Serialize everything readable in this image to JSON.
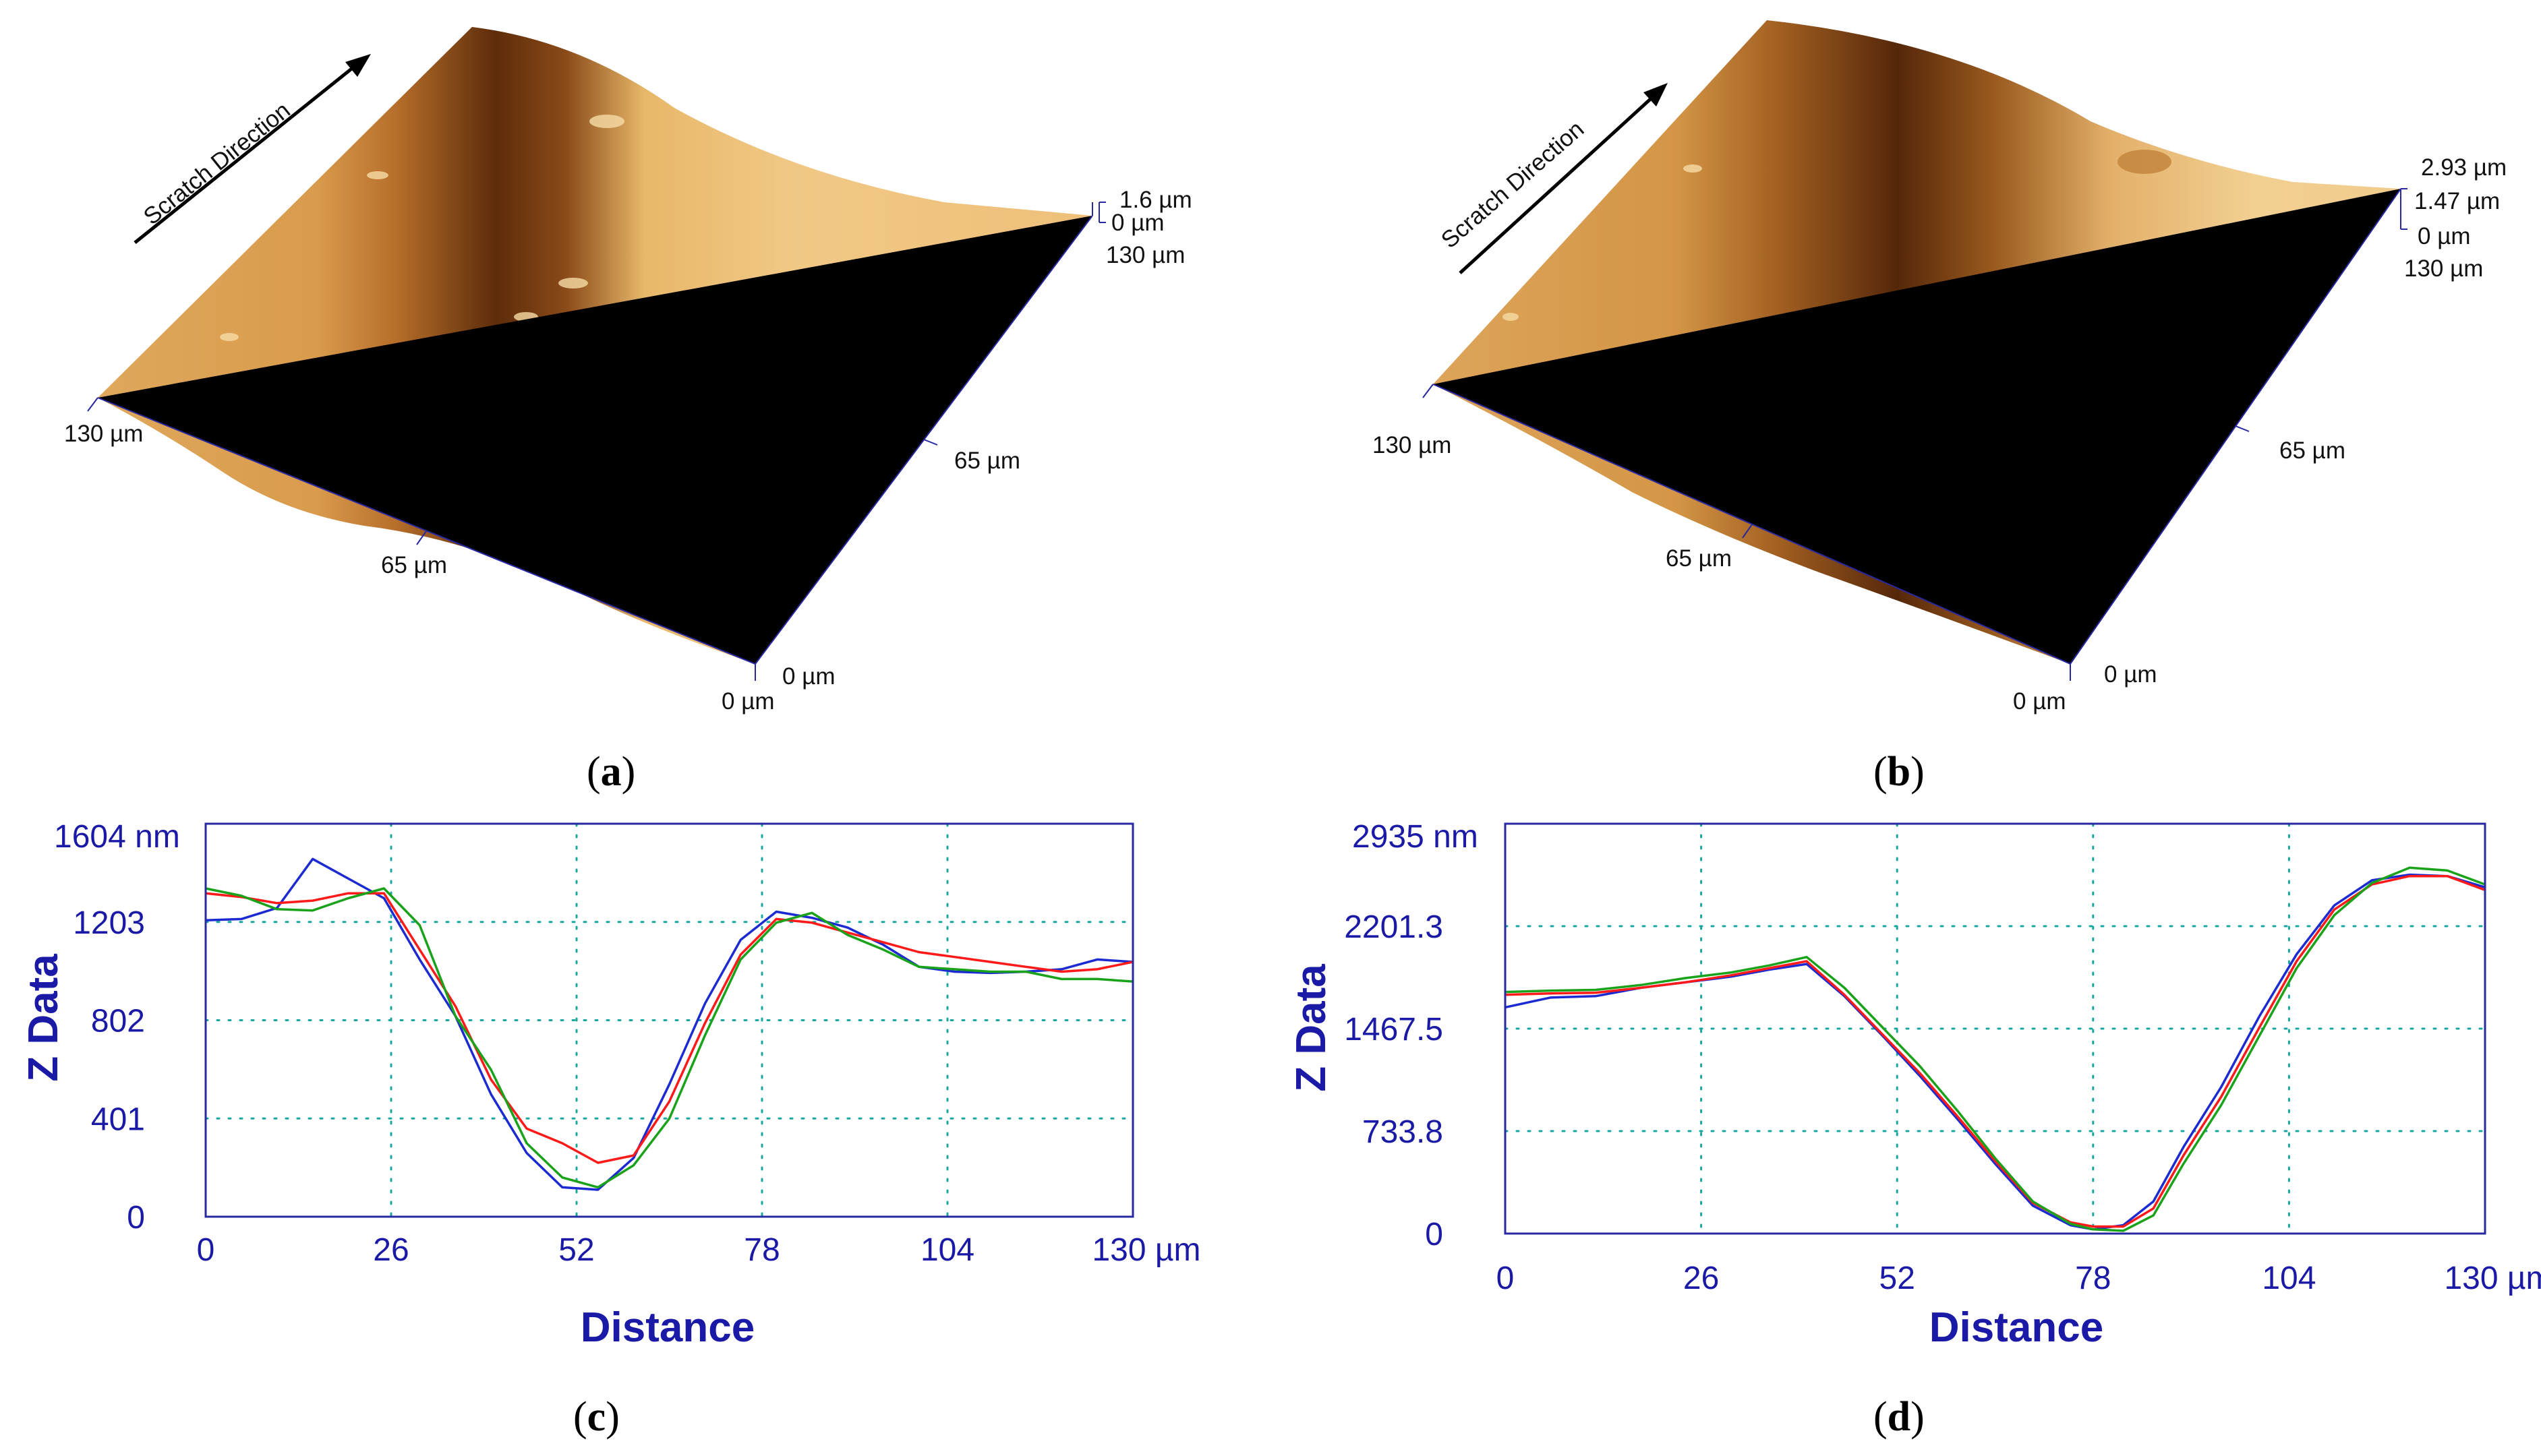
{
  "figure": {
    "panels": [
      {
        "id": "a",
        "caption": "a",
        "scratch_label": "Scratch Direction",
        "labels": {
          "z_top": "1.6 µm",
          "z_zero": "0 µm",
          "y_max": "130 µm",
          "y_mid": "65 µm",
          "y_zero": "0 µm",
          "x_max": "130 µm",
          "x_mid": "65 µm",
          "x_zero": "0 µm"
        }
      },
      {
        "id": "b",
        "caption": "b",
        "scratch_label": "Scratch Direction",
        "labels": {
          "z_top": "2.93 µm",
          "z_mid": "1.47 µm",
          "z_zero": "0 µm",
          "y_max": "130 µm",
          "y_mid": "65 µm",
          "y_zero": "0 µm",
          "x_max": "130 µm",
          "x_mid": "65 µm",
          "x_zero": "0 µm"
        }
      }
    ],
    "colors": {
      "surface_light": "#e8b86a",
      "surface_dark": "#5a2a08",
      "axis_blue": "#1a1aa6",
      "grid_teal": "#19a7a0",
      "series_blue": "#1b2bd1",
      "series_red": "#ff1a1a",
      "series_green": "#1aa31a"
    }
  },
  "chart_data": [
    {
      "id": "c",
      "caption": "c",
      "type": "line",
      "title": "",
      "xlabel": "Distance",
      "ylabel": "Z Data",
      "xlim": [
        0,
        130
      ],
      "ylim": [
        0,
        1604
      ],
      "x_ticks": [
        "0",
        "26",
        "52",
        "78",
        "104",
        "130 µm"
      ],
      "y_ticks": [
        "0",
        "401",
        "802",
        "1203",
        "1604 nm"
      ],
      "x_tick_values": [
        0,
        26,
        52,
        78,
        104,
        130
      ],
      "y_tick_values": [
        0,
        401,
        802,
        1203,
        1604
      ],
      "grid": true,
      "x": [
        0,
        5,
        10,
        15,
        20,
        25,
        30,
        35,
        40,
        45,
        50,
        55,
        60,
        65,
        70,
        75,
        80,
        85,
        90,
        95,
        100,
        105,
        110,
        115,
        120,
        125,
        130
      ],
      "series": [
        {
          "name": "blue",
          "color": "#1b2bd1",
          "values": [
            1210,
            1215,
            1260,
            1460,
            1380,
            1300,
            1050,
            820,
            500,
            260,
            120,
            110,
            240,
            540,
            870,
            1130,
            1245,
            1220,
            1180,
            1110,
            1020,
            1000,
            995,
            1000,
            1010,
            1050,
            1040
          ]
        },
        {
          "name": "red",
          "color": "#ff1a1a",
          "values": [
            1320,
            1305,
            1280,
            1290,
            1320,
            1320,
            1090,
            860,
            560,
            360,
            300,
            220,
            250,
            470,
            790,
            1070,
            1215,
            1200,
            1160,
            1120,
            1080,
            1060,
            1040,
            1020,
            1000,
            1010,
            1040
          ]
        },
        {
          "name": "green",
          "color": "#1aa31a",
          "values": [
            1340,
            1310,
            1255,
            1250,
            1300,
            1340,
            1190,
            820,
            600,
            300,
            160,
            120,
            210,
            400,
            740,
            1050,
            1200,
            1240,
            1150,
            1090,
            1020,
            1010,
            1000,
            1000,
            970,
            970,
            960
          ]
        }
      ]
    },
    {
      "id": "d",
      "caption": "d",
      "type": "line",
      "title": "",
      "xlabel": "Distance",
      "ylabel": "Z Data",
      "xlim": [
        0,
        130
      ],
      "ylim": [
        0,
        2935
      ],
      "x_ticks": [
        "0",
        "26",
        "52",
        "78",
        "104",
        "130 µm"
      ],
      "y_ticks": [
        "0",
        "733.8",
        "1467.5",
        "2201.3",
        "2935 nm"
      ],
      "x_tick_values": [
        0,
        26,
        52,
        78,
        104,
        130
      ],
      "y_tick_values": [
        0,
        733.8,
        1467.5,
        2201.3,
        2935
      ],
      "grid": true,
      "x": [
        0,
        6,
        12,
        18,
        24,
        30,
        35,
        40,
        45,
        50,
        55,
        60,
        65,
        70,
        75,
        78,
        82,
        86,
        90,
        95,
        100,
        105,
        110,
        115,
        120,
        125,
        130
      ],
      "series": [
        {
          "name": "blue",
          "color": "#1b2bd1",
          "values": [
            1620,
            1690,
            1700,
            1760,
            1800,
            1840,
            1890,
            1930,
            1700,
            1420,
            1130,
            820,
            500,
            200,
            60,
            30,
            60,
            230,
            620,
            1050,
            1550,
            2000,
            2350,
            2530,
            2570,
            2560,
            2480
          ]
        },
        {
          "name": "red",
          "color": "#ff1a1a",
          "values": [
            1710,
            1720,
            1725,
            1760,
            1800,
            1850,
            1900,
            1950,
            1710,
            1430,
            1150,
            840,
            520,
            220,
            80,
            50,
            50,
            180,
            560,
            980,
            1470,
            1950,
            2320,
            2500,
            2560,
            2560,
            2460
          ]
        },
        {
          "name": "green",
          "color": "#1aa31a",
          "values": [
            1730,
            1740,
            1745,
            1780,
            1830,
            1870,
            1920,
            1980,
            1760,
            1480,
            1200,
            880,
            540,
            230,
            70,
            30,
            20,
            130,
            500,
            920,
            1410,
            1900,
            2280,
            2510,
            2620,
            2600,
            2500
          ]
        }
      ]
    }
  ]
}
